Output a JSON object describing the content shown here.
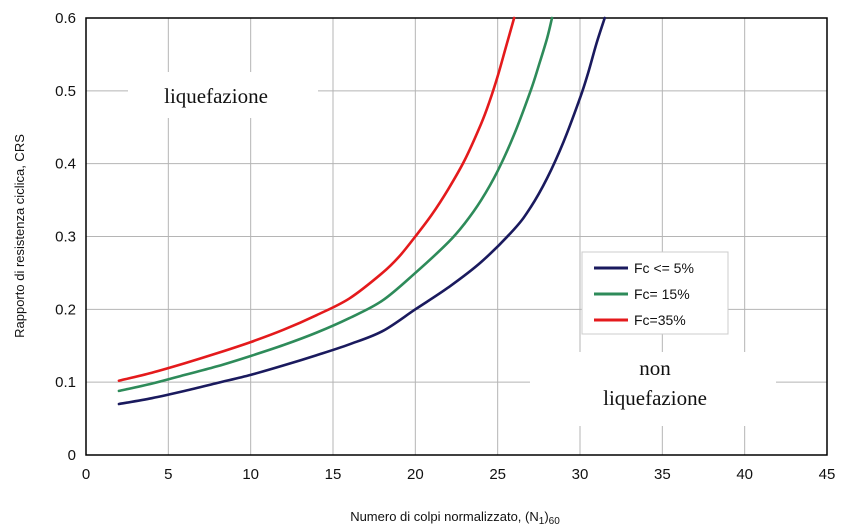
{
  "chart_data": {
    "type": "line",
    "xlabel_main": "Numero di colpi normalizzato, (N",
    "xlabel_sub1": "1",
    "xlabel_mid": ")",
    "xlabel_sub2": "60",
    "ylabel": "Rapporto di resistenza ciclica, CRS",
    "xlim": [
      0,
      45
    ],
    "ylim": [
      0,
      0.6
    ],
    "xticks": [
      "0",
      "5",
      "10",
      "15",
      "20",
      "25",
      "30",
      "35",
      "40",
      "45"
    ],
    "yticks": [
      "0",
      "0.1",
      "0.2",
      "0.3",
      "0.4",
      "0.5",
      "0.6"
    ],
    "grid": true,
    "legend_position": "right",
    "annotations": {
      "liquefaction": "liquefazione",
      "non_liquefaction_line1": "non",
      "non_liquefaction_line2": "liquefazione"
    },
    "series": [
      {
        "name": "Fc <= 5%",
        "color": "#1a1a5e",
        "x": [
          2,
          4,
          6,
          8,
          10,
          12,
          14,
          16,
          18,
          20,
          22,
          24,
          26,
          27,
          28,
          29,
          30,
          30.5,
          31,
          31.5
        ],
        "y": [
          0.07,
          0.078,
          0.088,
          0.099,
          0.11,
          0.123,
          0.137,
          0.152,
          0.17,
          0.2,
          0.23,
          0.265,
          0.31,
          0.34,
          0.38,
          0.43,
          0.49,
          0.525,
          0.565,
          0.6
        ]
      },
      {
        "name": "Fc= 15%",
        "color": "#2e8b5a",
        "x": [
          2,
          4,
          6,
          8,
          10,
          12,
          14,
          16,
          18,
          20,
          22,
          23,
          24,
          25,
          26,
          27,
          27.5,
          28,
          28.3
        ],
        "y": [
          0.088,
          0.098,
          0.11,
          0.122,
          0.136,
          0.151,
          0.168,
          0.188,
          0.212,
          0.25,
          0.292,
          0.318,
          0.35,
          0.39,
          0.44,
          0.5,
          0.535,
          0.572,
          0.6
        ]
      },
      {
        "name": "Fc=35%",
        "color": "#e41a1c",
        "x": [
          2,
          4,
          6,
          8,
          10,
          12,
          14,
          16,
          18,
          19,
          20,
          21,
          22,
          23,
          24,
          24.5,
          25,
          25.5,
          26
        ],
        "y": [
          0.102,
          0.113,
          0.126,
          0.14,
          0.155,
          0.172,
          0.192,
          0.215,
          0.25,
          0.272,
          0.3,
          0.33,
          0.365,
          0.405,
          0.455,
          0.485,
          0.52,
          0.56,
          0.6
        ]
      }
    ]
  }
}
